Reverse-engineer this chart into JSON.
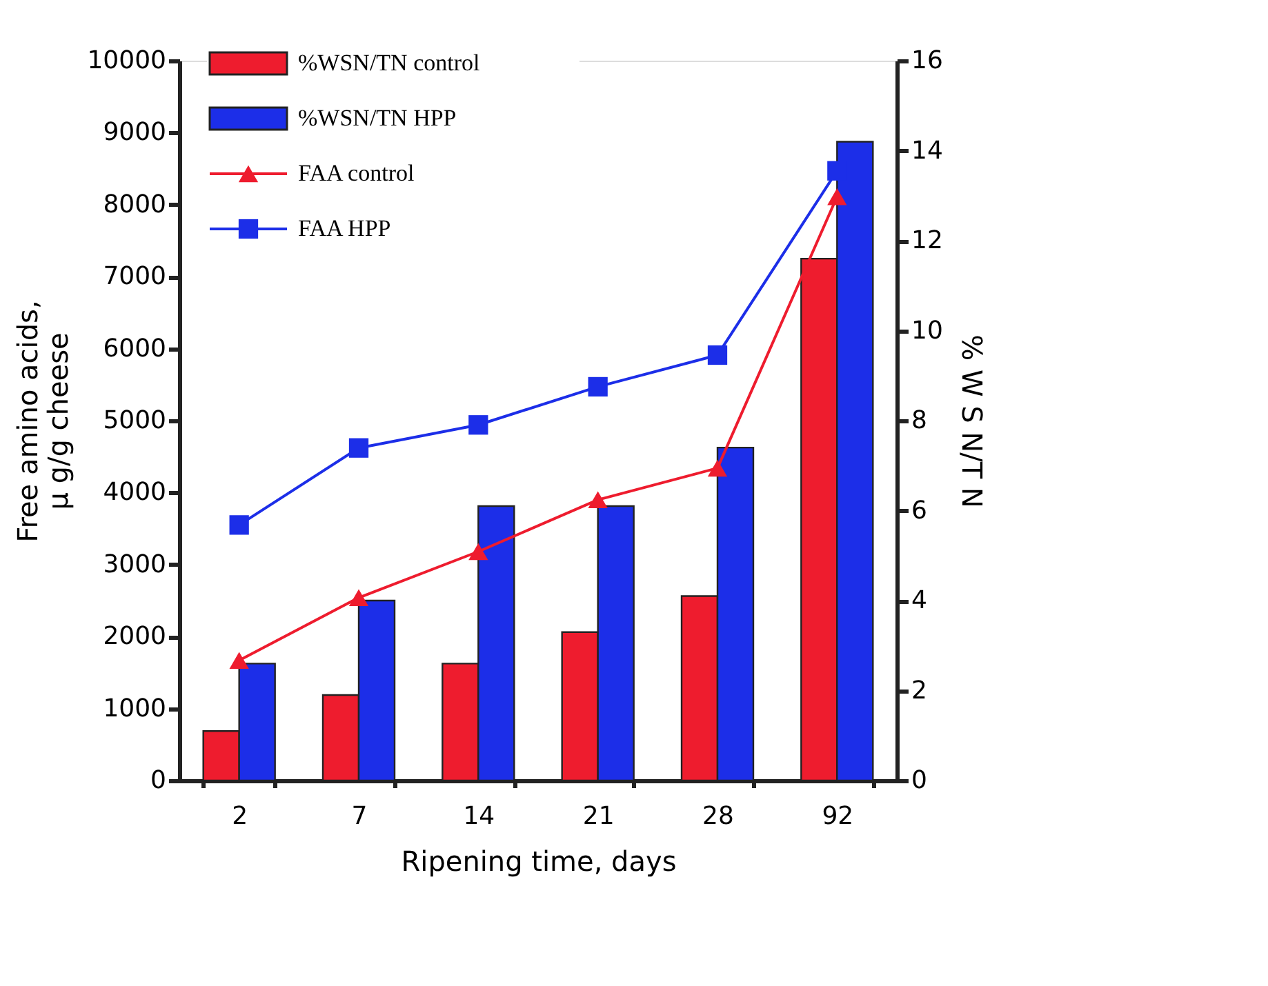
{
  "chart_data": {
    "type": "bar",
    "xlabel": "Ripening time, days",
    "ylabel": "Free amino acids,\nμ g/g cheese",
    "y2label": "% W S N/T N",
    "categories": [
      "2",
      "7",
      "14",
      "21",
      "28",
      "92"
    ],
    "series": [
      {
        "name": "%WSN/TN control",
        "axis": "y2",
        "color": "#ee1c2e",
        "values": [
          1.1,
          1.9,
          2.6,
          3.3,
          4.1,
          11.6
        ]
      },
      {
        "name": "%WSN/TN HPP",
        "axis": "y2",
        "color": "#1c2ee8",
        "values": [
          2.6,
          4.0,
          6.1,
          6.1,
          7.4,
          14.2
        ]
      },
      {
        "name": "FAA control",
        "type": "line",
        "axis": "y",
        "color": "#ee1c2e",
        "marker": "triangle",
        "values": [
          1670,
          2540,
          3180,
          3900,
          4340,
          8110
        ]
      },
      {
        "name": "FAA HPP",
        "type": "line",
        "axis": "y",
        "color": "#1c2ee8",
        "marker": "square",
        "values": [
          3550,
          4620,
          4940,
          5470,
          5910,
          8470
        ]
      }
    ],
    "ylim": [
      0,
      10000
    ],
    "yticks": [
      0,
      1000,
      2000,
      3000,
      4000,
      5000,
      6000,
      7000,
      8000,
      9000,
      10000
    ],
    "y2lim": [
      0,
      16
    ],
    "y2ticks": [
      0,
      2,
      4,
      6,
      8,
      10,
      12,
      14,
      16
    ],
    "grid": false,
    "legend": "top left",
    "line_style": "solid"
  }
}
